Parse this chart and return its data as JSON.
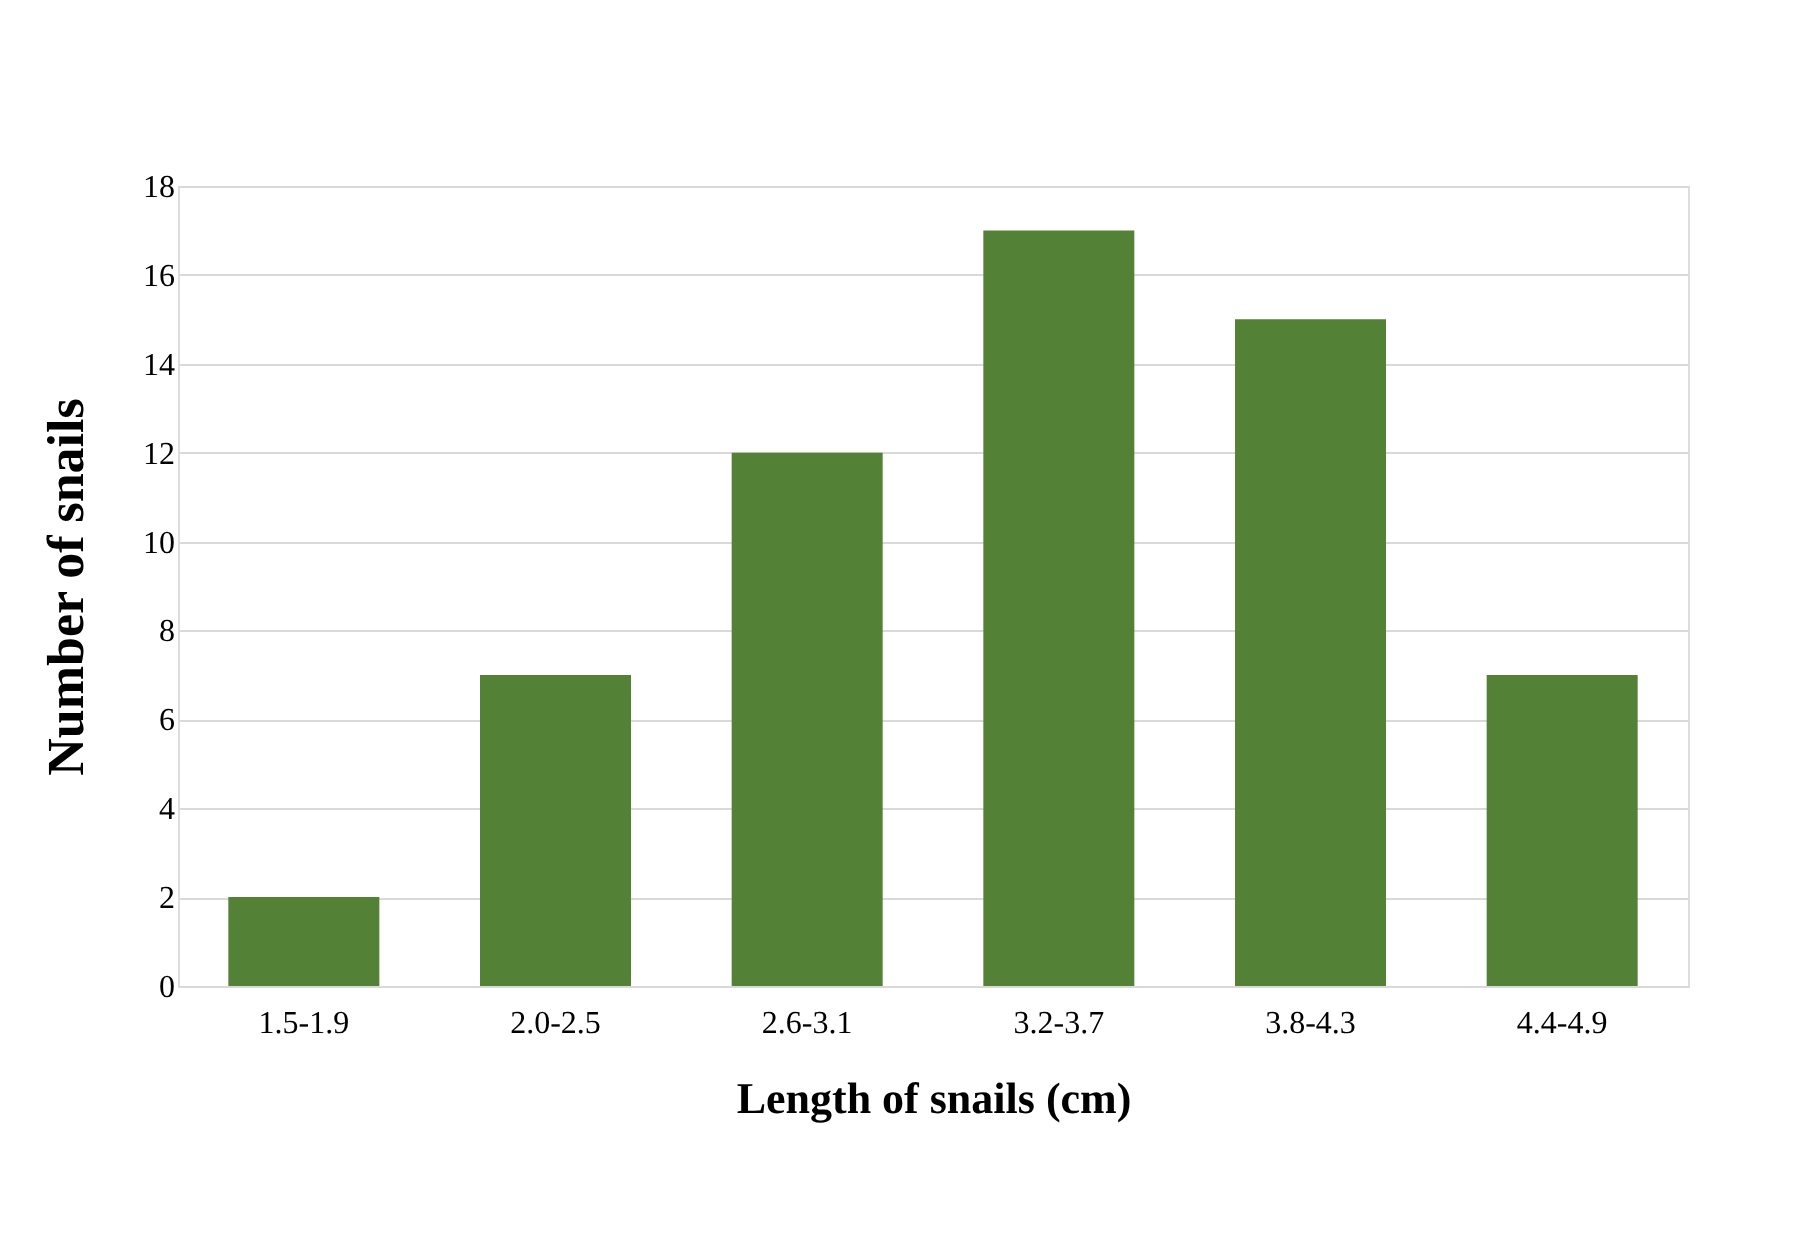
{
  "chart_data": {
    "type": "bar",
    "xlabel": "Length of snails (cm)",
    "ylabel": "Number of snails",
    "categories": [
      "1.5-1.9",
      "2.0-2.5",
      "2.6-3.1",
      "3.2-3.7",
      "3.8-4.3",
      "4.4-4.9"
    ],
    "values": [
      2,
      7,
      12,
      17,
      15,
      7
    ],
    "color": "#538135",
    "ylim": [
      0,
      18
    ],
    "yticks": [
      0,
      2,
      4,
      6,
      8,
      10,
      12,
      14,
      16,
      18
    ],
    "grid": "y"
  }
}
